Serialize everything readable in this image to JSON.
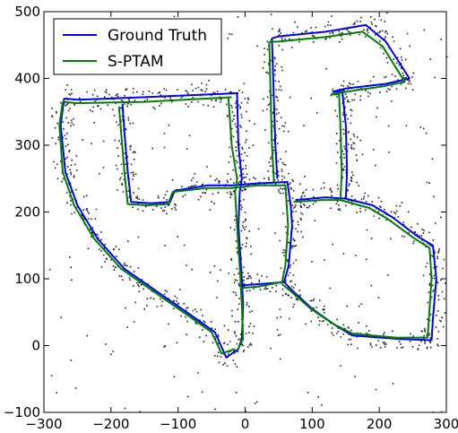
{
  "chart_data": {
    "type": "line",
    "xlim": [
      -300,
      300
    ],
    "ylim": [
      -100,
      500
    ],
    "x_ticks": [
      -300,
      -200,
      -100,
      0,
      100,
      200,
      300
    ],
    "y_ticks": [
      -100,
      0,
      100,
      200,
      300,
      400,
      500
    ],
    "x_tick_labels": [
      "−300",
      "−200",
      "−100",
      "0",
      "100",
      "200",
      "300"
    ],
    "y_tick_labels": [
      "−100",
      "0",
      "100",
      "200",
      "300",
      "400",
      "500"
    ],
    "legend_position": "top-left",
    "grid": false,
    "series": [
      {
        "name": "Ground Truth",
        "color": "#0000ff",
        "segments": [
          [
            [
              -270,
              370
            ],
            [
              -250,
              368
            ],
            [
              -150,
              372
            ],
            [
              -10,
              378
            ]
          ],
          [
            [
              -270,
              370
            ],
            [
              -275,
              330
            ],
            [
              -268,
              260
            ],
            [
              -250,
              210
            ],
            [
              -220,
              160
            ],
            [
              -180,
              115
            ],
            [
              -130,
              80
            ],
            [
              -80,
              45
            ],
            [
              -45,
              20
            ],
            [
              -28,
              -18
            ],
            [
              -10,
              -5
            ]
          ],
          [
            [
              -183,
              362
            ],
            [
              -180,
              320
            ],
            [
              -175,
              260
            ],
            [
              -170,
              215
            ],
            [
              -140,
              213
            ],
            [
              -112,
              215
            ],
            [
              -105,
              232
            ],
            [
              -55,
              240
            ],
            [
              -20,
              240
            ],
            [
              20,
              243
            ],
            [
              63,
              245
            ],
            [
              68,
              210
            ],
            [
              70,
              180
            ],
            [
              65,
              120
            ],
            [
              58,
              95
            ],
            [
              20,
              92
            ],
            [
              -10,
              90
            ]
          ],
          [
            [
              -12,
              377
            ],
            [
              -10,
              300
            ],
            [
              -5,
              250
            ],
            [
              -8,
              230
            ],
            [
              -10,
              180
            ],
            [
              -5,
              100
            ],
            [
              -3,
              60
            ],
            [
              -5,
              10
            ],
            [
              -12,
              -10
            ]
          ],
          [
            [
              40,
              460
            ],
            [
              45,
              300
            ],
            [
              48,
              250
            ]
          ],
          [
            [
              40,
              460
            ],
            [
              50,
              463
            ],
            [
              120,
              470
            ],
            [
              180,
              480
            ],
            [
              210,
              455
            ],
            [
              245,
              400
            ],
            [
              210,
              392
            ],
            [
              150,
              385
            ],
            [
              130,
              380
            ]
          ],
          [
            [
              130,
              380
            ],
            [
              145,
              380
            ],
            [
              150,
              330
            ],
            [
              152,
              260
            ],
            [
              150,
              220
            ],
            [
              120,
              222
            ],
            [
              75,
              218
            ]
          ],
          [
            [
              150,
              220
            ],
            [
              190,
              210
            ],
            [
              220,
              192
            ],
            [
              255,
              165
            ],
            [
              280,
              150
            ],
            [
              285,
              100
            ],
            [
              280,
              40
            ],
            [
              278,
              8
            ],
            [
              230,
              10
            ],
            [
              160,
              15
            ],
            [
              135,
              30
            ],
            [
              100,
              55
            ],
            [
              75,
              78
            ],
            [
              58,
              95
            ]
          ]
        ]
      },
      {
        "name": "S-PTAM",
        "color": "#008000",
        "segments": [
          [
            [
              -272,
              365
            ],
            [
              -250,
              363
            ],
            [
              -150,
              365
            ],
            [
              -20,
              372
            ]
          ],
          [
            [
              -272,
              365
            ],
            [
              -277,
              330
            ],
            [
              -272,
              260
            ],
            [
              -255,
              210
            ],
            [
              -225,
              160
            ],
            [
              -185,
              115
            ],
            [
              -135,
              80
            ],
            [
              -85,
              45
            ],
            [
              -50,
              20
            ],
            [
              -35,
              -12
            ],
            [
              -15,
              -5
            ]
          ],
          [
            [
              -188,
              358
            ],
            [
              -185,
              320
            ],
            [
              -180,
              260
            ],
            [
              -175,
              212
            ],
            [
              -145,
              210
            ],
            [
              -115,
              212
            ],
            [
              -108,
              230
            ],
            [
              -58,
              236
            ],
            [
              -22,
              236
            ],
            [
              18,
              240
            ],
            [
              60,
              240
            ],
            [
              62,
              210
            ],
            [
              64,
              180
            ],
            [
              60,
              120
            ],
            [
              55,
              95
            ],
            [
              18,
              88
            ],
            [
              -8,
              86
            ]
          ],
          [
            [
              -25,
              372
            ],
            [
              -20,
              300
            ],
            [
              -12,
              250
            ],
            [
              -15,
              230
            ],
            [
              -12,
              180
            ],
            [
              -7,
              100
            ],
            [
              -5,
              60
            ],
            [
              -3,
              10
            ],
            [
              -12,
              -8
            ]
          ],
          [
            [
              36,
              455
            ],
            [
              40,
              300
            ],
            [
              43,
              245
            ]
          ],
          [
            [
              36,
              455
            ],
            [
              48,
              455
            ],
            [
              120,
              462
            ],
            [
              175,
              470
            ],
            [
              205,
              448
            ],
            [
              238,
              395
            ],
            [
              205,
              388
            ],
            [
              150,
              380
            ],
            [
              128,
              376
            ]
          ],
          [
            [
              128,
              376
            ],
            [
              140,
              376
            ],
            [
              142,
              330
            ],
            [
              144,
              260
            ],
            [
              142,
              218
            ],
            [
              115,
              218
            ],
            [
              72,
              215
            ]
          ],
          [
            [
              142,
              218
            ],
            [
              185,
              206
            ],
            [
              215,
              188
            ],
            [
              250,
              162
            ],
            [
              275,
              146
            ],
            [
              278,
              100
            ],
            [
              274,
              40
            ],
            [
              272,
              12
            ],
            [
              225,
              12
            ],
            [
              160,
              18
            ],
            [
              132,
              32
            ],
            [
              98,
              55
            ],
            [
              72,
              78
            ],
            [
              55,
              92
            ]
          ]
        ]
      }
    ]
  }
}
